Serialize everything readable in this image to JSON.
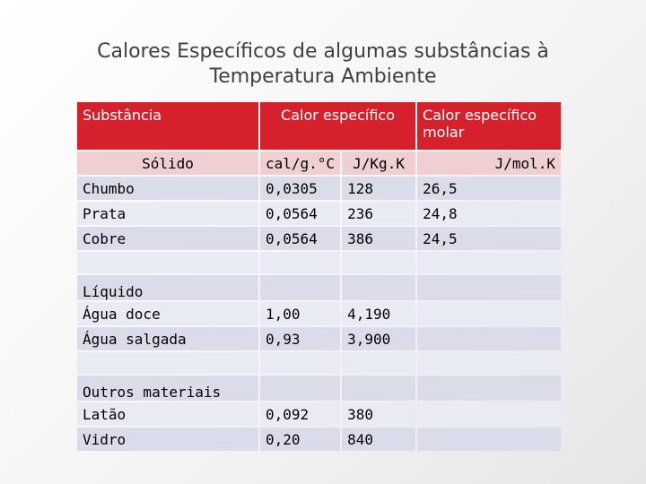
{
  "title": {
    "line1": "Calores Específicos de algumas  substâncias à",
    "line2": "Temperatura Ambiente"
  },
  "header": {
    "substance": "Substância",
    "specific_heat": "Calor específico",
    "molar_heat_1": "Calor específico",
    "molar_heat_2": "molar"
  },
  "subheader": {
    "solid": "Sólido",
    "unit_cal": "cal/g.°C",
    "unit_jkg": "J/Kg.K",
    "unit_jmol": "J/mol.K"
  },
  "rows": {
    "chumbo": {
      "name": "Chumbo",
      "cal": "0,0305",
      "jkg": "128",
      "jmol": "26,5"
    },
    "prata": {
      "name": "Prata",
      "cal": "0,0564",
      "jkg": "236",
      "jmol": "24,8"
    },
    "cobre": {
      "name": "Cobre",
      "cal": "0,0564",
      "jkg": "386",
      "jmol": "24,5"
    },
    "liquido": {
      "name": "Líquido"
    },
    "agua_doce": {
      "name": "Água doce",
      "cal": "1,00",
      "jkg": "4,190"
    },
    "agua_salgada": {
      "name": "Água salgada",
      "cal": "0,93",
      "jkg": "3,900"
    },
    "outros": {
      "name": "Outros materiais"
    },
    "latao": {
      "name": "Latão",
      "cal": "0,092",
      "jkg": "380"
    },
    "vidro": {
      "name": "Vidro",
      "cal": "0,20",
      "jkg": "840"
    }
  },
  "colors": {
    "header_bg": "#d6202b",
    "subheader_bg": "#efcfd2",
    "row_light": "#e9ebf4",
    "row_dark": "#dadcea"
  }
}
